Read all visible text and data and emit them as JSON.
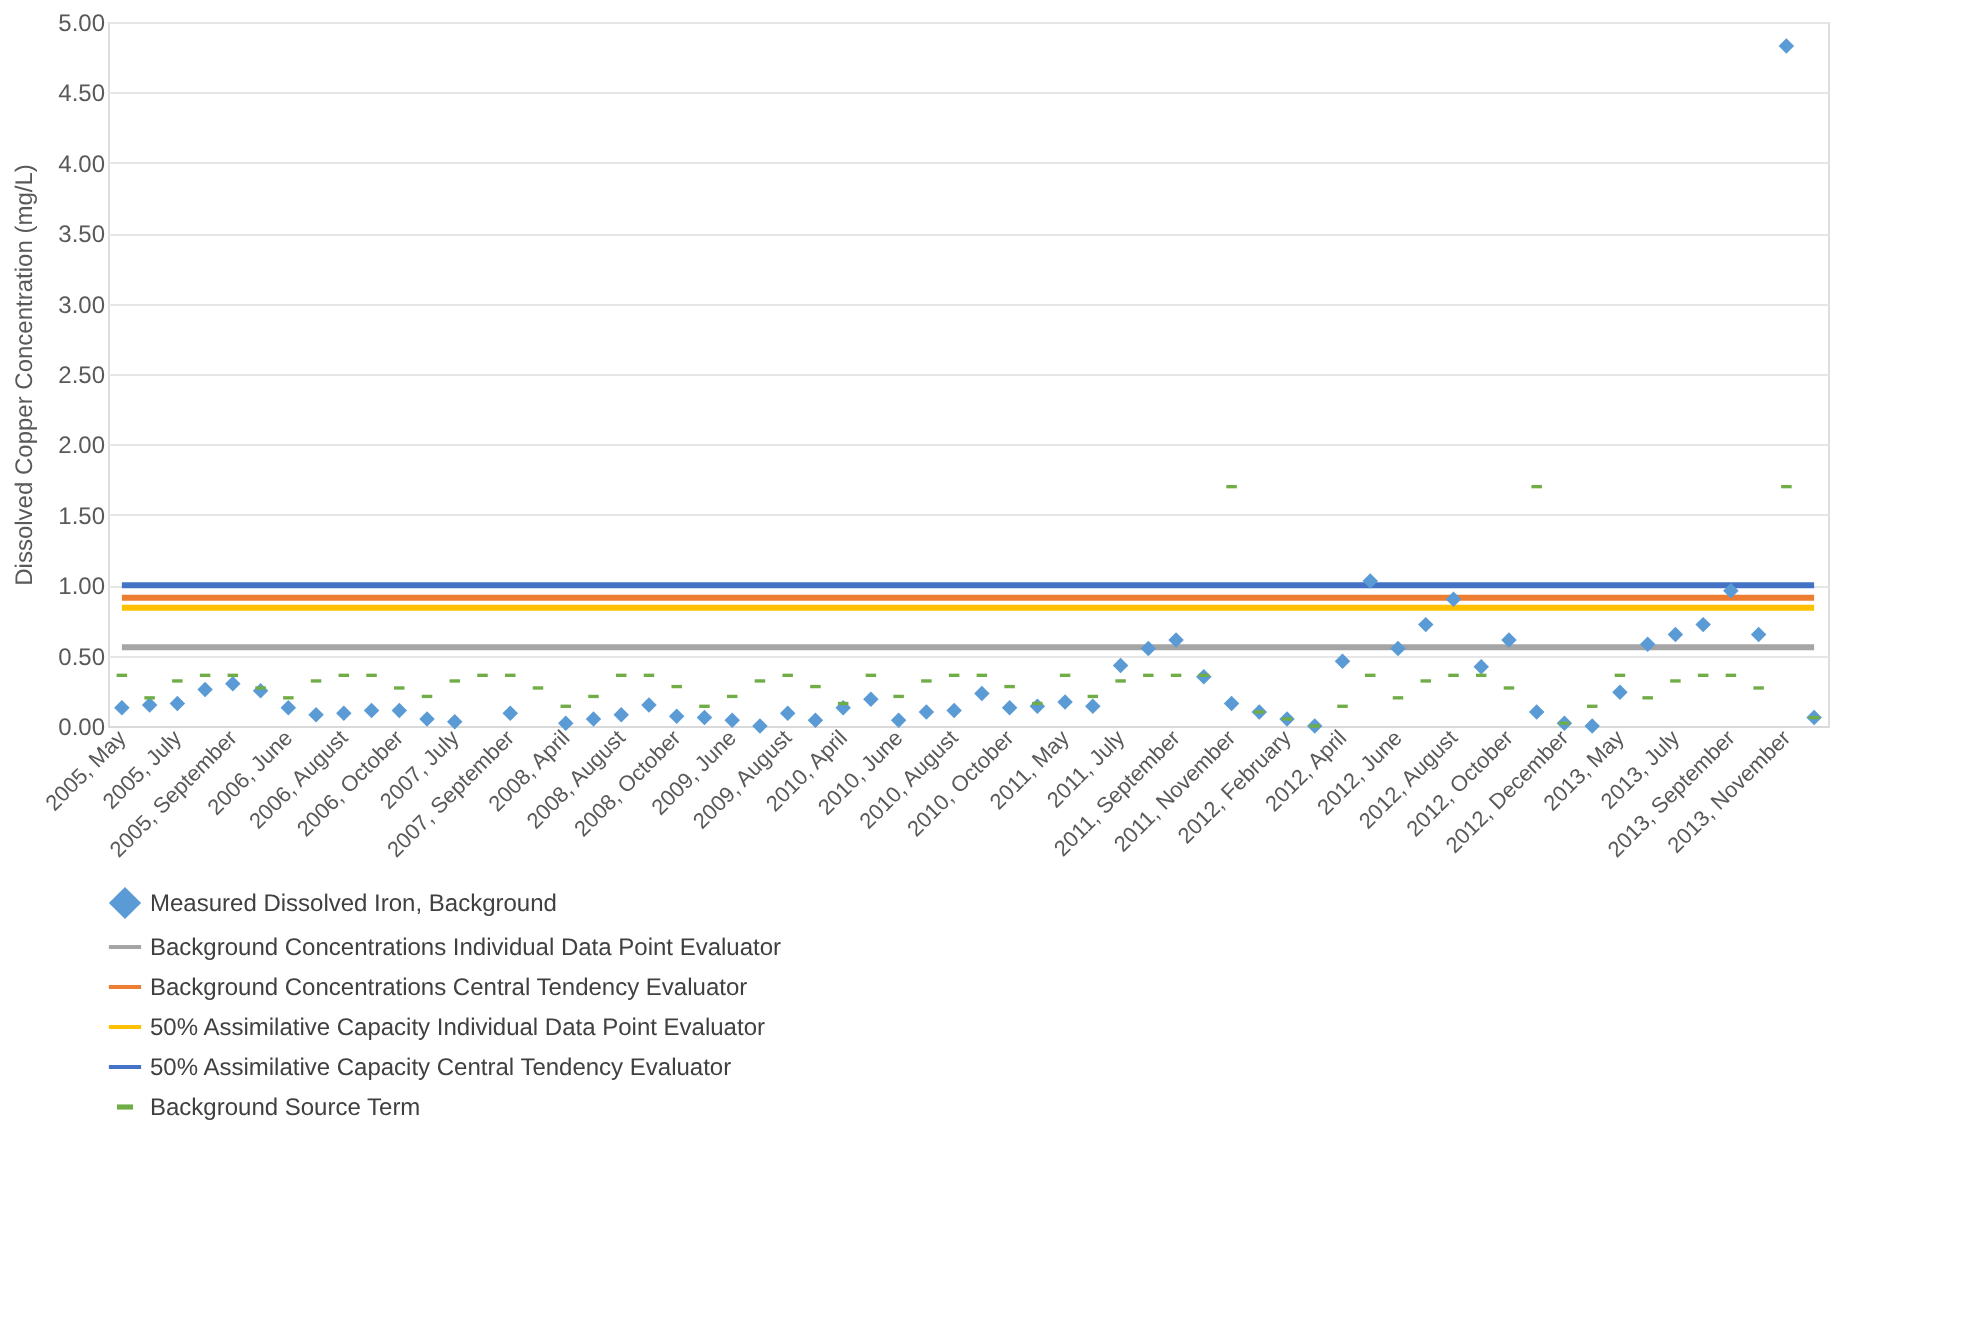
{
  "chart_data": {
    "type": "scatter",
    "ylabel": "Dissolved Copper Concentration (mg/L)",
    "categories": [
      "2005, May",
      null,
      "2005, July",
      null,
      "2005, September",
      null,
      "2006, June",
      null,
      "2006, August",
      null,
      "2006, October",
      null,
      "2007, July",
      null,
      "2007, September",
      null,
      "2008, April",
      null,
      "2008, August",
      null,
      "2008, October",
      null,
      "2009, June",
      null,
      "2009, August",
      null,
      "2010, April",
      null,
      "2010, June",
      null,
      "2010, August",
      null,
      "2010, October",
      null,
      "2011, May",
      null,
      "2011, July",
      null,
      "2011, September",
      null,
      "2011, November",
      null,
      "2012, February",
      null,
      "2012, April",
      null,
      "2012, June",
      null,
      "2012, August",
      null,
      "2012, October",
      null,
      "2012, December",
      null,
      "2013, May",
      null,
      "2013, July",
      null,
      "2013, September",
      null,
      "2013, November",
      null
    ],
    "series": [
      {
        "name": "Measured Dissolved Iron, Background",
        "type": "scatter",
        "marker": "diamond",
        "color": "#5b9bd5",
        "values": [
          0.13,
          0.15,
          0.16,
          0.26,
          0.3,
          0.25,
          0.13,
          0.08,
          0.09,
          0.11,
          0.11,
          0.05,
          0.03,
          null,
          0.09,
          null,
          0.02,
          0.05,
          0.08,
          0.15,
          0.07,
          0.06,
          0.04,
          0.0,
          0.09,
          0.04,
          0.13,
          0.19,
          0.04,
          0.1,
          0.11,
          0.23,
          0.13,
          0.14,
          0.17,
          0.14,
          0.43,
          0.55,
          0.61,
          0.35,
          0.16,
          0.1,
          0.05,
          0.0,
          0.46,
          1.03,
          0.55,
          0.72,
          0.9,
          0.42,
          0.61,
          0.1,
          0.02,
          0.0,
          0.24,
          0.58,
          0.65,
          0.72,
          0.96,
          0.65,
          4.83,
          0.06
        ]
      },
      {
        "name": "Background Concentrations Individual Data Point Evaluator",
        "type": "line",
        "color": "#a5a5a5",
        "values": [
          0.56,
          0.56,
          0.56,
          0.56,
          0.56,
          0.56,
          0.56,
          0.56,
          0.56,
          0.56,
          0.56,
          0.56,
          0.56,
          0.56,
          0.56,
          0.56,
          0.56,
          0.56,
          0.56,
          0.56,
          0.56,
          0.56,
          0.56,
          0.56,
          0.56,
          0.56,
          0.56,
          0.56,
          0.56,
          0.56,
          0.56,
          0.56,
          0.56,
          0.56,
          0.56,
          0.56,
          0.56,
          0.56,
          0.56,
          0.56,
          0.56,
          0.56,
          0.56,
          0.56,
          0.56,
          0.56,
          0.56,
          0.56,
          0.56,
          0.56,
          0.56,
          0.56,
          0.56,
          0.56,
          0.56,
          0.56,
          0.56,
          0.56,
          0.56,
          0.56,
          0.56,
          0.56
        ]
      },
      {
        "name": "Background Concentrations Central Tendency Evaluator",
        "type": "line",
        "color": "#ed7d31",
        "values": [
          0.91,
          0.91,
          0.91,
          0.91,
          0.91,
          0.91,
          0.91,
          0.91,
          0.91,
          0.91,
          0.91,
          0.91,
          0.91,
          0.91,
          0.91,
          0.91,
          0.91,
          0.91,
          0.91,
          0.91,
          0.91,
          0.91,
          0.91,
          0.91,
          0.91,
          0.91,
          0.91,
          0.91,
          0.91,
          0.91,
          0.91,
          0.91,
          0.91,
          0.91,
          0.91,
          0.91,
          0.91,
          0.91,
          0.91,
          0.91,
          0.91,
          0.91,
          0.91,
          0.91,
          0.91,
          0.91,
          0.91,
          0.91,
          0.91,
          0.91,
          0.91,
          0.91,
          0.91,
          0.91,
          0.91,
          0.91,
          0.91,
          0.91,
          0.91,
          0.91,
          0.91,
          0.91
        ]
      },
      {
        "name": "50% Assimilative Capacity Individual Data Point Evaluator",
        "type": "line",
        "color": "#ffc000",
        "values": [
          0.84,
          0.84,
          0.84,
          0.84,
          0.84,
          0.84,
          0.84,
          0.84,
          0.84,
          0.84,
          0.84,
          0.84,
          0.84,
          0.84,
          0.84,
          0.84,
          0.84,
          0.84,
          0.84,
          0.84,
          0.84,
          0.84,
          0.84,
          0.84,
          0.84,
          0.84,
          0.84,
          0.84,
          0.84,
          0.84,
          0.84,
          0.84,
          0.84,
          0.84,
          0.84,
          0.84,
          0.84,
          0.84,
          0.84,
          0.84,
          0.84,
          0.84,
          0.84,
          0.84,
          0.84,
          0.84,
          0.84,
          0.84,
          0.84,
          0.84,
          0.84,
          0.84,
          0.84,
          0.84,
          0.84,
          0.84,
          0.84,
          0.84,
          0.84,
          0.84,
          0.84,
          0.84
        ]
      },
      {
        "name": "50% Assimilative Capacity Central Tendency Evaluator",
        "type": "line",
        "color": "#4472c4",
        "values": [
          1.0,
          1.0,
          1.0,
          1.0,
          1.0,
          1.0,
          1.0,
          1.0,
          1.0,
          1.0,
          1.0,
          1.0,
          1.0,
          1.0,
          1.0,
          1.0,
          1.0,
          1.0,
          1.0,
          1.0,
          1.0,
          1.0,
          1.0,
          1.0,
          1.0,
          1.0,
          1.0,
          1.0,
          1.0,
          1.0,
          1.0,
          1.0,
          1.0,
          1.0,
          1.0,
          1.0,
          1.0,
          1.0,
          1.0,
          1.0,
          1.0,
          1.0,
          1.0,
          1.0,
          1.0,
          1.0,
          1.0,
          1.0,
          1.0,
          1.0,
          1.0,
          1.0,
          1.0,
          1.0,
          1.0,
          1.0,
          1.0,
          1.0,
          1.0,
          1.0,
          1.0,
          1.0
        ]
      },
      {
        "name": "Background Source Term",
        "type": "scatter",
        "marker": "square",
        "color": "#70ad47",
        "values": [
          0.36,
          0.2,
          0.32,
          0.36,
          0.36,
          0.27,
          0.2,
          0.32,
          0.36,
          0.36,
          0.27,
          0.21,
          0.32,
          0.36,
          0.36,
          0.27,
          0.14,
          0.21,
          0.36,
          0.36,
          0.28,
          0.14,
          0.21,
          0.32,
          0.36,
          0.28,
          0.16,
          0.36,
          0.21,
          0.32,
          0.36,
          0.36,
          0.28,
          0.16,
          0.36,
          0.21,
          0.32,
          0.36,
          0.36,
          0.36,
          1.7,
          0.1,
          0.05,
          0.0,
          0.14,
          0.36,
          0.2,
          0.32,
          0.36,
          0.36,
          0.27,
          1.7,
          0.02,
          0.14,
          0.36,
          0.2,
          0.32,
          0.36,
          0.36,
          0.27,
          1.7,
          0.06
        ]
      }
    ],
    "ylim": [
      0,
      5
    ],
    "yticks": [
      {
        "value": 0,
        "label": "0.00"
      },
      {
        "value": 0.5,
        "label": "0.50"
      },
      {
        "value": 1,
        "label": "1.00"
      },
      {
        "value": 1.5,
        "label": "1.50"
      },
      {
        "value": 2,
        "label": "2.00"
      },
      {
        "value": 2.5,
        "label": "2.50"
      },
      {
        "value": 3,
        "label": "3.00"
      },
      {
        "value": 3.5,
        "label": "3.50"
      },
      {
        "value": 4,
        "label": "4.00"
      },
      {
        "value": 4.5,
        "label": "4.50"
      },
      {
        "value": 5,
        "label": "5.00"
      }
    ],
    "grid": "y",
    "legend": "bottom"
  }
}
